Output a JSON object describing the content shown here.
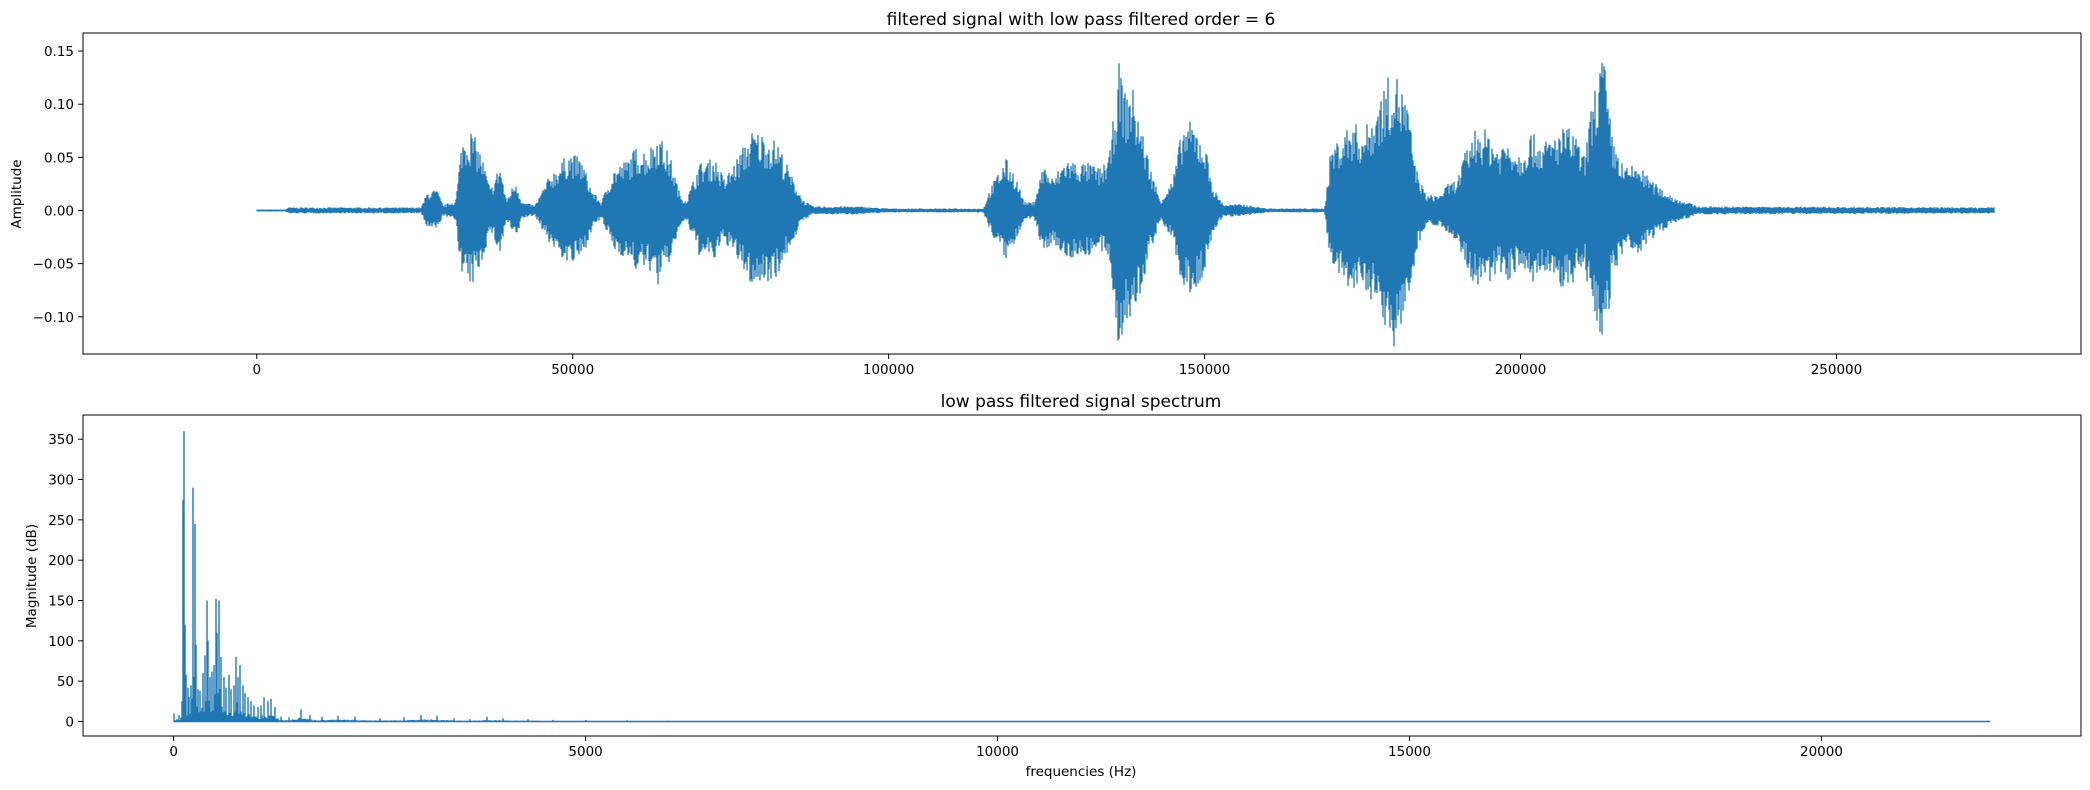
{
  "chart_data": [
    {
      "type": "line",
      "title": "filtered signal with low pass filtered order = 6",
      "xlabel": "",
      "ylabel": "Amplitude",
      "xlim": [
        -27500,
        288700
      ],
      "ylim": [
        -0.135,
        0.167
      ],
      "x_ticks": [
        0,
        50000,
        100000,
        150000,
        200000,
        250000
      ],
      "y_ticks": [
        -0.1,
        -0.05,
        0.0,
        0.05,
        0.1,
        0.15
      ],
      "x_tick_labels": [
        "0",
        "50000",
        "100000",
        "150000",
        "200000",
        "250000"
      ],
      "y_tick_labels": [
        "−0.10",
        "−0.05",
        "0.00",
        "0.05",
        "0.10",
        "0.15"
      ],
      "grid": false,
      "color": "#1f77b4",
      "sample_count": 275000,
      "envelope_points": [
        [
          0,
          0.001
        ],
        [
          4500,
          0.001
        ],
        [
          5000,
          0.003
        ],
        [
          26000,
          0.003
        ],
        [
          27000,
          0.018
        ],
        [
          28500,
          0.02
        ],
        [
          29500,
          0.005
        ],
        [
          31500,
          0.01
        ],
        [
          32500,
          0.07
        ],
        [
          34000,
          0.077
        ],
        [
          35500,
          0.055
        ],
        [
          37000,
          0.02
        ],
        [
          38500,
          0.045
        ],
        [
          39500,
          0.01
        ],
        [
          41000,
          0.03
        ],
        [
          42000,
          0.008
        ],
        [
          44000,
          0.005
        ],
        [
          46500,
          0.035
        ],
        [
          48000,
          0.045
        ],
        [
          49500,
          0.056
        ],
        [
          51500,
          0.048
        ],
        [
          53000,
          0.02
        ],
        [
          54500,
          0.008
        ],
        [
          56500,
          0.04
        ],
        [
          58500,
          0.048
        ],
        [
          60000,
          0.06
        ],
        [
          62000,
          0.058
        ],
        [
          63500,
          0.075
        ],
        [
          65500,
          0.05
        ],
        [
          67000,
          0.015
        ],
        [
          68000,
          0.01
        ],
        [
          70000,
          0.045
        ],
        [
          72500,
          0.05
        ],
        [
          74000,
          0.03
        ],
        [
          76000,
          0.05
        ],
        [
          78500,
          0.077
        ],
        [
          80500,
          0.072
        ],
        [
          82500,
          0.065
        ],
        [
          84500,
          0.035
        ],
        [
          86500,
          0.01
        ],
        [
          88000,
          0.004
        ],
        [
          95000,
          0.004
        ],
        [
          100000,
          0.002
        ],
        [
          115000,
          0.002
        ],
        [
          116000,
          0.02
        ],
        [
          118500,
          0.05
        ],
        [
          120000,
          0.035
        ],
        [
          121500,
          0.008
        ],
        [
          123000,
          0.008
        ],
        [
          124500,
          0.045
        ],
        [
          126000,
          0.03
        ],
        [
          128000,
          0.05
        ],
        [
          130000,
          0.046
        ],
        [
          132000,
          0.045
        ],
        [
          133500,
          0.04
        ],
        [
          135000,
          0.055
        ],
        [
          136500,
          0.142
        ],
        [
          137500,
          0.11
        ],
        [
          138500,
          0.12
        ],
        [
          140000,
          0.08
        ],
        [
          141500,
          0.04
        ],
        [
          143000,
          0.01
        ],
        [
          145000,
          0.03
        ],
        [
          146500,
          0.08
        ],
        [
          148000,
          0.085
        ],
        [
          150000,
          0.065
        ],
        [
          151500,
          0.02
        ],
        [
          153000,
          0.006
        ],
        [
          156000,
          0.006
        ],
        [
          160000,
          0.002
        ],
        [
          169000,
          0.002
        ],
        [
          170000,
          0.06
        ],
        [
          172000,
          0.075
        ],
        [
          173500,
          0.085
        ],
        [
          175000,
          0.075
        ],
        [
          176500,
          0.09
        ],
        [
          178500,
          0.12
        ],
        [
          180000,
          0.135
        ],
        [
          182000,
          0.105
        ],
        [
          183500,
          0.04
        ],
        [
          185000,
          0.015
        ],
        [
          187000,
          0.015
        ],
        [
          188500,
          0.025
        ],
        [
          190000,
          0.03
        ],
        [
          191500,
          0.06
        ],
        [
          193000,
          0.08
        ],
        [
          195000,
          0.075
        ],
        [
          196500,
          0.06
        ],
        [
          198000,
          0.07
        ],
        [
          200000,
          0.055
        ],
        [
          201500,
          0.075
        ],
        [
          203500,
          0.065
        ],
        [
          205000,
          0.07
        ],
        [
          207000,
          0.08
        ],
        [
          208500,
          0.075
        ],
        [
          210000,
          0.05
        ],
        [
          211500,
          0.11
        ],
        [
          213000,
          0.155
        ],
        [
          214500,
          0.07
        ],
        [
          216500,
          0.04
        ],
        [
          218500,
          0.045
        ],
        [
          220500,
          0.03
        ],
        [
          222500,
          0.02
        ],
        [
          224500,
          0.012
        ],
        [
          226500,
          0.008
        ],
        [
          228000,
          0.004
        ],
        [
          275000,
          0.003
        ]
      ]
    },
    {
      "type": "line",
      "title": "low pass filtered signal spectrum",
      "xlabel": "frequencies (Hz)",
      "ylabel": "Magnitude (dB)",
      "xlim": [
        -1100,
        23150
      ],
      "ylim": [
        -18,
        380
      ],
      "x_ticks": [
        0,
        5000,
        10000,
        15000,
        20000
      ],
      "y_ticks": [
        0,
        50,
        100,
        150,
        200,
        250,
        300,
        350
      ],
      "x_tick_labels": [
        "0",
        "5000",
        "10000",
        "15000",
        "20000"
      ],
      "y_tick_labels": [
        "0",
        "50",
        "100",
        "150",
        "200",
        "250",
        "300",
        "350"
      ],
      "grid": false,
      "color": "#1f77b4",
      "peaks": [
        [
          0,
          10
        ],
        [
          60,
          8
        ],
        [
          90,
          5
        ],
        [
          110,
          275
        ],
        [
          120,
          360
        ],
        [
          140,
          120
        ],
        [
          150,
          58
        ],
        [
          170,
          42
        ],
        [
          190,
          30
        ],
        [
          210,
          45
        ],
        [
          230,
          240
        ],
        [
          240,
          290
        ],
        [
          255,
          245
        ],
        [
          270,
          95
        ],
        [
          290,
          40
        ],
        [
          320,
          38
        ],
        [
          360,
          60
        ],
        [
          380,
          82
        ],
        [
          400,
          150
        ],
        [
          420,
          100
        ],
        [
          440,
          55
        ],
        [
          460,
          62
        ],
        [
          490,
          70
        ],
        [
          510,
          152
        ],
        [
          530,
          110
        ],
        [
          555,
          150
        ],
        [
          580,
          80
        ],
        [
          610,
          55
        ],
        [
          640,
          42
        ],
        [
          670,
          58
        ],
        [
          700,
          40
        ],
        [
          730,
          45
        ],
        [
          760,
          80
        ],
        [
          780,
          55
        ],
        [
          810,
          70
        ],
        [
          840,
          45
        ],
        [
          870,
          35
        ],
        [
          900,
          30
        ],
        [
          940,
          25
        ],
        [
          980,
          20
        ],
        [
          1020,
          18
        ],
        [
          1060,
          20
        ],
        [
          1100,
          30
        ],
        [
          1140,
          25
        ],
        [
          1180,
          28
        ],
        [
          1230,
          18
        ],
        [
          1300,
          6
        ],
        [
          1400,
          5
        ],
        [
          1550,
          15
        ],
        [
          1650,
          8
        ],
        [
          1800,
          6
        ],
        [
          2000,
          7
        ],
        [
          2200,
          6
        ],
        [
          2500,
          4
        ],
        [
          2800,
          5
        ],
        [
          3000,
          8
        ],
        [
          3200,
          7
        ],
        [
          3400,
          4
        ],
        [
          3600,
          3
        ],
        [
          3800,
          6
        ],
        [
          4000,
          4
        ],
        [
          4300,
          3
        ],
        [
          4600,
          2
        ],
        [
          5000,
          2
        ],
        [
          5500,
          1.5
        ],
        [
          6000,
          1
        ],
        [
          8000,
          0.7
        ],
        [
          12000,
          0.5
        ],
        [
          16000,
          0.4
        ],
        [
          22050,
          0.3
        ]
      ]
    }
  ]
}
